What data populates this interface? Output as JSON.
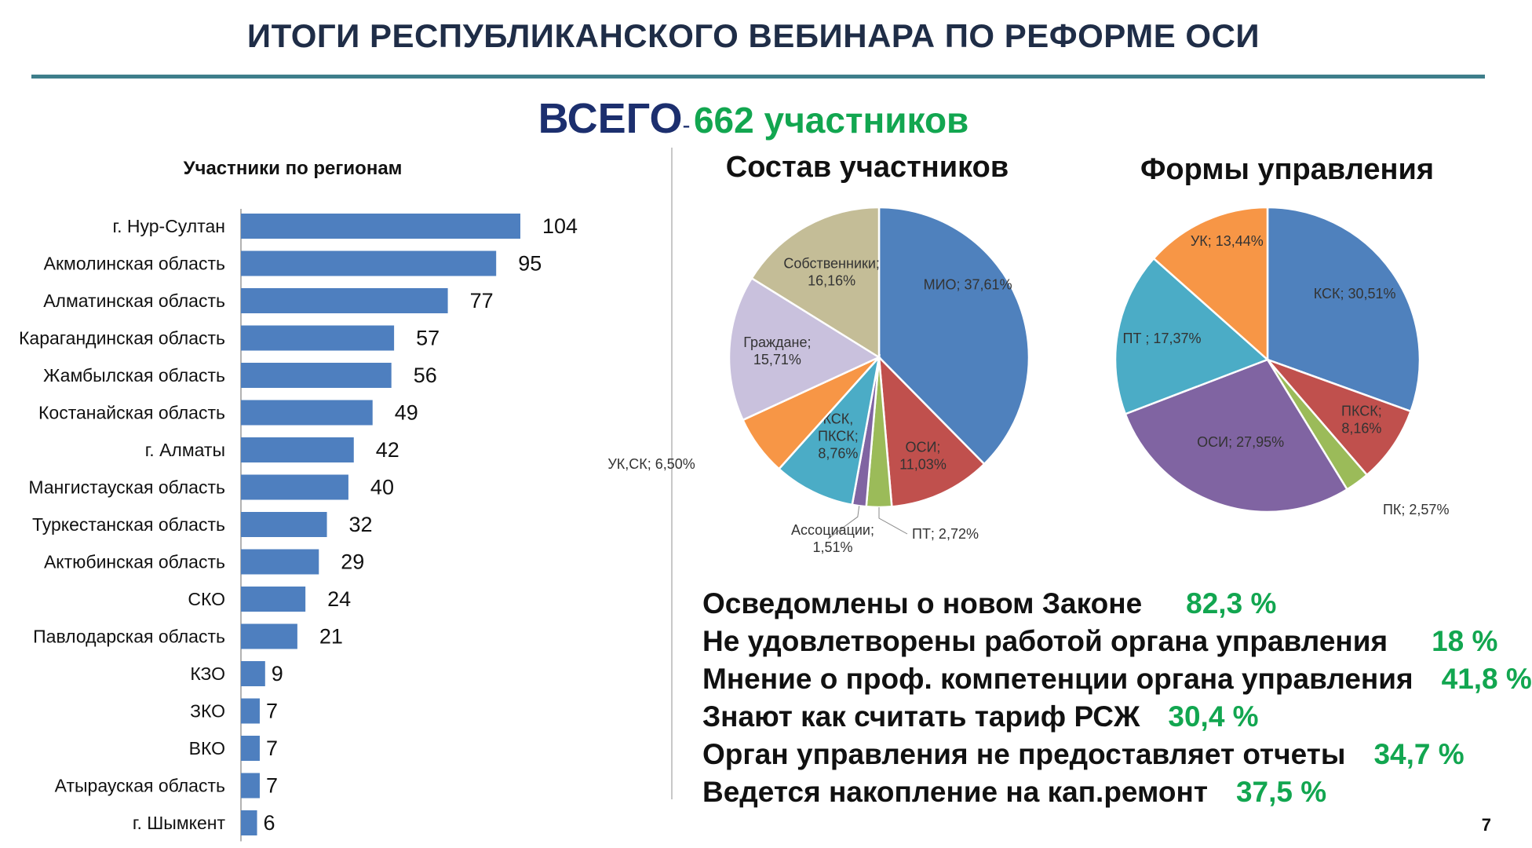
{
  "slide": {
    "title": "ИТОГИ РЕСПУБЛИКАНСКОГО ВЕБИНАРА ПО РЕФОРМЕ ОСИ",
    "total_label": "ВСЕГО",
    "total_dash": "-",
    "total_value": "662 участников",
    "page_number": "7"
  },
  "chart_data": [
    {
      "type": "bar",
      "orientation": "horizontal",
      "title": "Участники по регионам",
      "categories": [
        "г. Нур-Султан",
        "Акмолинская область",
        "Алматинская область",
        "Карагандинская область",
        "Жамбылская область",
        "Костанайская область",
        "г. Алматы",
        "Мангистауская область",
        "Туркестанская область",
        "Актюбинская область",
        "СКО",
        "Павлодарская область",
        "КЗО",
        "ЗКО",
        "ВКО",
        "Атырауская область",
        "г. Шымкент"
      ],
      "values": [
        104,
        95,
        77,
        57,
        56,
        49,
        42,
        40,
        32,
        29,
        24,
        21,
        9,
        7,
        7,
        7,
        6
      ],
      "color": "#4e7fbf"
    },
    {
      "type": "pie",
      "title": "Состав участников",
      "slices": [
        {
          "label": "МИО; 37,61%",
          "value": 37.61,
          "color": "#4f81bd"
        },
        {
          "label": "ОСИ; 11,03%",
          "value": 11.03,
          "color": "#c0504d"
        },
        {
          "label": "ПТ; 2,72%",
          "value": 2.72,
          "color": "#9bbb59"
        },
        {
          "label": "Ассоциации; 1,51%",
          "value": 1.51,
          "color": "#8064a2"
        },
        {
          "label": "КСК, ПКСК; 8,76%",
          "value": 8.76,
          "color": "#4bacc6"
        },
        {
          "label": "УК,СК; 6,50%",
          "value": 6.5,
          "color": "#f79646"
        },
        {
          "label": "Граждане; 15,71%",
          "value": 15.71,
          "color": "#c9c1dd"
        },
        {
          "label": "Собственники; 16,16%",
          "value": 16.16,
          "color": "#c4bd97"
        }
      ]
    },
    {
      "type": "pie",
      "title": "Формы управления",
      "slices": [
        {
          "label": "КСК; 30,51%",
          "value": 30.51,
          "color": "#4f81bd"
        },
        {
          "label": "ПКСК; 8,16%",
          "value": 8.16,
          "color": "#c0504d"
        },
        {
          "label": "ПК; 2,57%",
          "value": 2.57,
          "color": "#9bbb59"
        },
        {
          "label": "ОСИ; 27,95%",
          "value": 27.95,
          "color": "#8064a2"
        },
        {
          "label": "ПТ ; 17,37%",
          "value": 17.37,
          "color": "#4bacc6"
        },
        {
          "label": "УК; 13,44%",
          "value": 13.44,
          "color": "#f79646"
        }
      ]
    }
  ],
  "stats": [
    {
      "text": "Осведомлены о новом Законе",
      "pct": "82,3 %"
    },
    {
      "text": "Не удовлетворены работой органа управления",
      "pct": "18 %"
    },
    {
      "text": "Мнение о проф. компетенции органа управления",
      "pct": "41,8 %"
    },
    {
      "text": "Знают как считать тариф РСЖ",
      "pct": "30,4 %"
    },
    {
      "text": "Орган управления не предоставляет отчеты",
      "pct": "34,7 %"
    },
    {
      "text": "Ведется накопление на кап.ремонт",
      "pct": "37,5 %"
    }
  ]
}
